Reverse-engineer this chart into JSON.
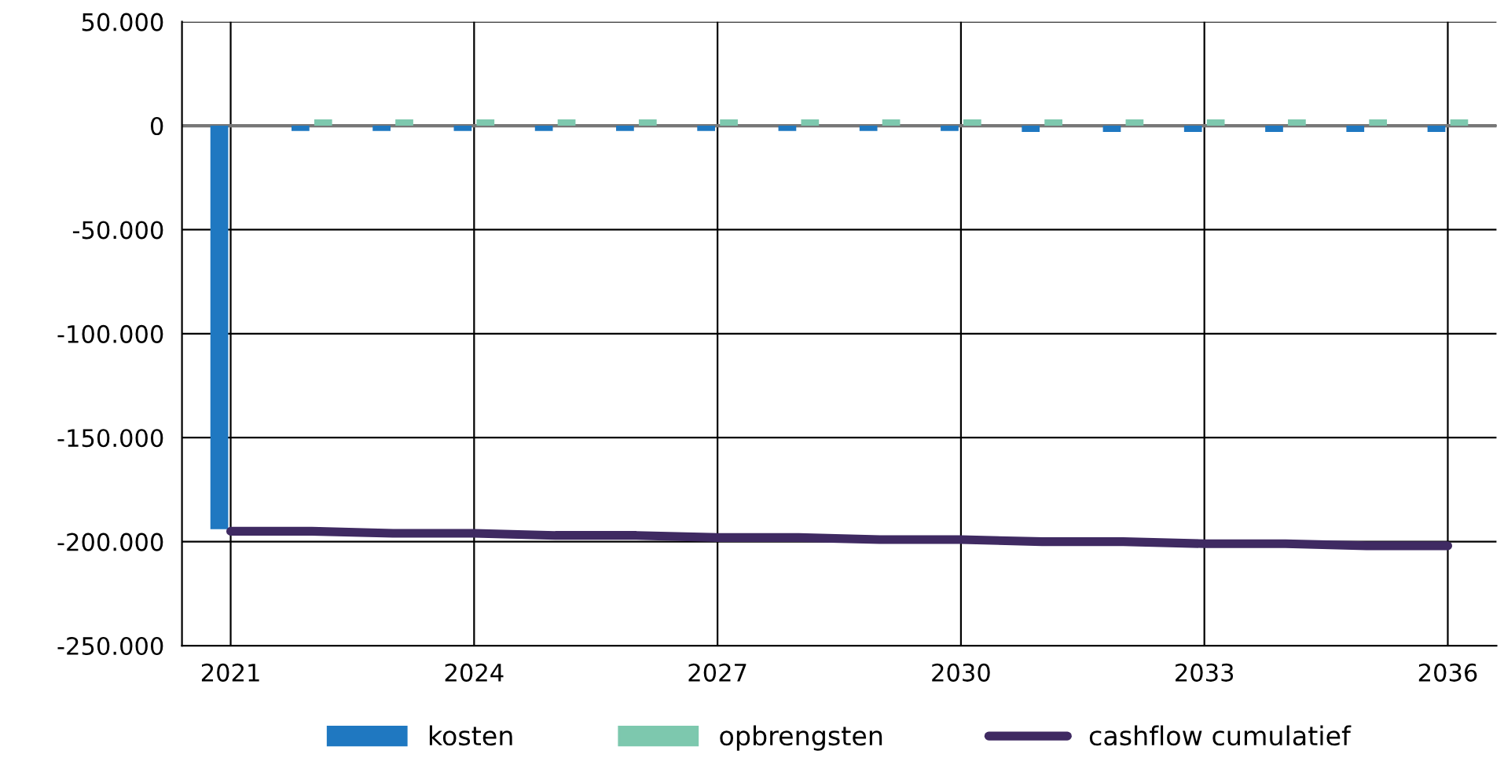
{
  "chart_data": {
    "type": "bar",
    "categories": [
      "2021",
      null,
      null,
      "2024",
      null,
      null,
      "2027",
      null,
      null,
      "2030",
      null,
      null,
      "2033",
      null,
      null,
      "2036"
    ],
    "series": [
      {
        "name": "kosten",
        "color": "#1f78c1",
        "values": [
          -194000,
          -2500,
          -2500,
          -2500,
          -2500,
          -2500,
          -2500,
          -2500,
          -2500,
          -2500,
          -3000,
          -3000,
          -3000,
          -3000,
          -3000,
          -3000
        ]
      },
      {
        "name": "opbrengsten",
        "color": "#7dc8ae",
        "values": [
          null,
          3000,
          3000,
          3000,
          3000,
          3000,
          3000,
          3000,
          3000,
          3000,
          3000,
          3000,
          3000,
          3000,
          3000,
          3000
        ]
      },
      {
        "name": "cashflow cumulatief",
        "type": "line",
        "color": "#3f2a62",
        "values": [
          -195000,
          -195000,
          -196000,
          -196000,
          -197000,
          -197000,
          -198000,
          -198000,
          -199000,
          -199000,
          -200000,
          -200000,
          -201000,
          -201000,
          -202000,
          -202000
        ]
      }
    ],
    "ylim": [
      -250000,
      50000
    ],
    "yticks": [
      {
        "value": 50000,
        "label": "50.000"
      },
      {
        "value": 0,
        "label": "0"
      },
      {
        "value": -50000,
        "label": "-50.000"
      },
      {
        "value": -100000,
        "label": "-100.000"
      },
      {
        "value": -150000,
        "label": "-150.000"
      },
      {
        "value": -200000,
        "label": "-200.000"
      },
      {
        "value": -250000,
        "label": "-250.000"
      }
    ],
    "grid": true,
    "legend": "bottom"
  }
}
